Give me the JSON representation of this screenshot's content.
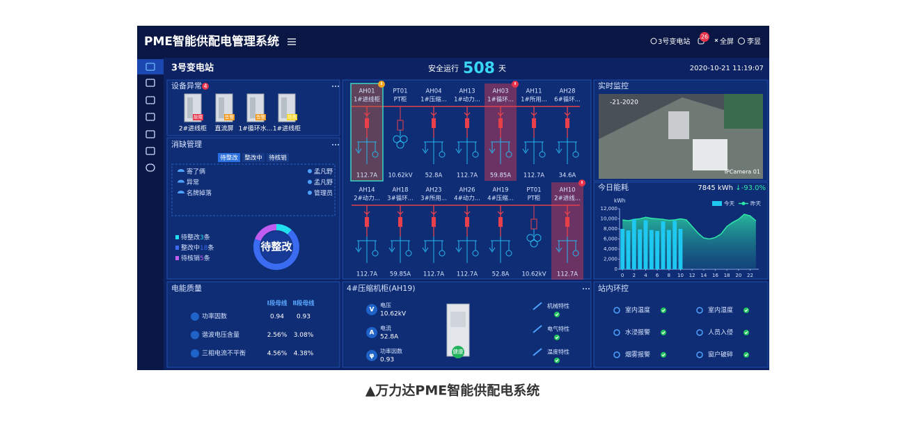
{
  "header": {
    "title": "PME智能供配电管理系统",
    "station": "3号变电站",
    "alarm_count": 26,
    "fullscreen": "全屏",
    "user": "李昱"
  },
  "status_bar": {
    "station": "3号变电站",
    "safe_label": "安全运行",
    "safe_days": 508,
    "days_unit": "天",
    "datetime": "2020-10-21 11:19:07"
  },
  "device_alarm": {
    "title": "设备异常",
    "count": 4,
    "items": [
      {
        "name": "2#进线柜",
        "tag": "故障",
        "color": "#e8334a"
      },
      {
        "name": "直流屏",
        "tag": "告警",
        "color": "#f29a1f"
      },
      {
        "name": "1#循环水...",
        "tag": "告警",
        "color": "#f29a1f"
      },
      {
        "name": "1#进线柜",
        "tag": "隐患",
        "color": "#f5d321"
      }
    ]
  },
  "defects": {
    "title": "消缺管理",
    "tabs": [
      "待整改",
      "整改中",
      "待核销"
    ],
    "list": [
      {
        "item": "寄了俩",
        "person": "孟凡野"
      },
      {
        "item": "异常",
        "person": "孟凡野"
      },
      {
        "item": "名牌掉落",
        "person": "管理员"
      }
    ],
    "summary": [
      {
        "label": "待整改",
        "count": 3,
        "unit": "条",
        "color": "#20e0f0"
      },
      {
        "label": "整改中",
        "count": 18,
        "unit": "条",
        "color": "#3a6bf0"
      },
      {
        "label": "待核销",
        "count": 5,
        "unit": "条",
        "color": "#c05cf0"
      }
    ],
    "donut_label": "待整改"
  },
  "diagram": {
    "rows": [
      [
        {
          "id": "AH01",
          "name": "1#进线柜",
          "reading": "112.7A",
          "symbol": "breaker",
          "state": "selected"
        },
        {
          "id": "PT01",
          "name": "PT柜",
          "reading": "10.62kV",
          "symbol": "pt"
        },
        {
          "id": "AH04",
          "name": "1#压缩...",
          "reading": "52.8A",
          "symbol": "breaker"
        },
        {
          "id": "AH13",
          "name": "1#动力...",
          "reading": "112.7A",
          "symbol": "breaker"
        },
        {
          "id": "AH03",
          "name": "1#循环...",
          "reading": "59.85A",
          "symbol": "breaker",
          "state": "alarm"
        },
        {
          "id": "AH11",
          "name": "1#所用...",
          "reading": "112.7A",
          "symbol": "breaker"
        },
        {
          "id": "AH28",
          "name": "6#循环...",
          "reading": "34.6A",
          "symbol": "breaker"
        }
      ],
      [
        {
          "id": "AH14",
          "name": "2#动力...",
          "reading": "112.7A",
          "symbol": "breaker"
        },
        {
          "id": "AH18",
          "name": "3#循环...",
          "reading": "59.85A",
          "symbol": "breaker"
        },
        {
          "id": "AH23",
          "name": "3#所用...",
          "reading": "112.7A",
          "symbol": "breaker"
        },
        {
          "id": "AH26",
          "name": "4#动力...",
          "reading": "112.7A",
          "symbol": "breaker"
        },
        {
          "id": "AH19",
          "name": "4#压缩...",
          "reading": "52.8A",
          "symbol": "breaker"
        },
        {
          "id": "PT01",
          "name": "PT柜",
          "reading": "10.62kV",
          "symbol": "pt"
        },
        {
          "id": "AH10",
          "name": "2#进线...",
          "reading": "112.7A",
          "symbol": "breaker",
          "state": "alarm"
        }
      ]
    ]
  },
  "camera": {
    "title": "实时监控",
    "overlay_date": "-21-2020",
    "camera_name": "IPCamera 01"
  },
  "chart_data": {
    "type": "bar",
    "title": "今日能耗",
    "annotations": [
      "7845 kWh",
      "↓-93.0%"
    ],
    "y_label": "kWh",
    "x": [
      0,
      1,
      2,
      3,
      4,
      5,
      6,
      7,
      8,
      9,
      10,
      11,
      12,
      13,
      14,
      15,
      16,
      17,
      18,
      19,
      20,
      21,
      22,
      23
    ],
    "series": [
      {
        "name": "今天",
        "color": "#1ec8f0",
        "type": "bar",
        "values": [
          8000,
          7700,
          9900,
          7900,
          9700,
          7800,
          7600,
          9500,
          7800,
          9600,
          8000,
          null,
          null,
          null,
          null,
          null,
          null,
          null,
          null,
          null,
          null,
          null,
          null,
          null
        ]
      },
      {
        "name": "昨天",
        "color": "#2ee6a8",
        "type": "area",
        "values": [
          9800,
          9600,
          9900,
          10000,
          10300,
          10100,
          10000,
          9900,
          9700,
          9800,
          10000,
          9800,
          8500,
          7200,
          6200,
          6000,
          6300,
          7000,
          8500,
          9300,
          9900,
          10900,
          10600,
          9600
        ]
      }
    ],
    "xlim": [
      -0.5,
      23.5
    ],
    "xticks": [
      0,
      2,
      4,
      6,
      8,
      10,
      12,
      14,
      16,
      18,
      20,
      22
    ],
    "ylim": [
      0,
      12000
    ],
    "yticks": [
      0,
      {
        "value": 2000,
        "label": "2,000"
      },
      {
        "value": 4000,
        "label": "4,000"
      },
      {
        "value": 6000,
        "label": "6,000"
      },
      {
        "value": 8000,
        "label": "8,000"
      },
      {
        "value": 10000,
        "label": "10,000"
      },
      {
        "value": 12000,
        "label": "12,000"
      }
    ],
    "legend": "top-right"
  },
  "power_quality": {
    "title": "电能质量",
    "columns": [
      "Ⅰ段母线",
      "Ⅱ段母线"
    ],
    "rows": [
      {
        "label": "功率因数",
        "v1": 0.94,
        "v2": 0.93
      },
      {
        "label": "谐波电压含量",
        "v1": "2.56%",
        "v2": "3.08%"
      },
      {
        "label": "三相电流不平衡",
        "v1": "4.56%",
        "v2": "4.38%"
      }
    ]
  },
  "cabinet": {
    "title": "4#压缩机柜(AH19)",
    "readings": [
      {
        "symbol": "V",
        "label": "电压",
        "value": "10.62kV"
      },
      {
        "symbol": "A",
        "label": "电流",
        "value": "52.8A"
      },
      {
        "symbol": "φ",
        "label": "功率因数",
        "value": 0.93
      }
    ],
    "checks": [
      "机械特性",
      "电气特性",
      "温度特性"
    ],
    "health": "健康"
  },
  "environment": {
    "title": "站内环控",
    "items": [
      "室内温度",
      "室内湿度",
      "水浸报警",
      "人员入侵",
      "烟雾报警",
      "窗户破碎"
    ]
  },
  "caption": "▲万力达PME智能供配电系统"
}
